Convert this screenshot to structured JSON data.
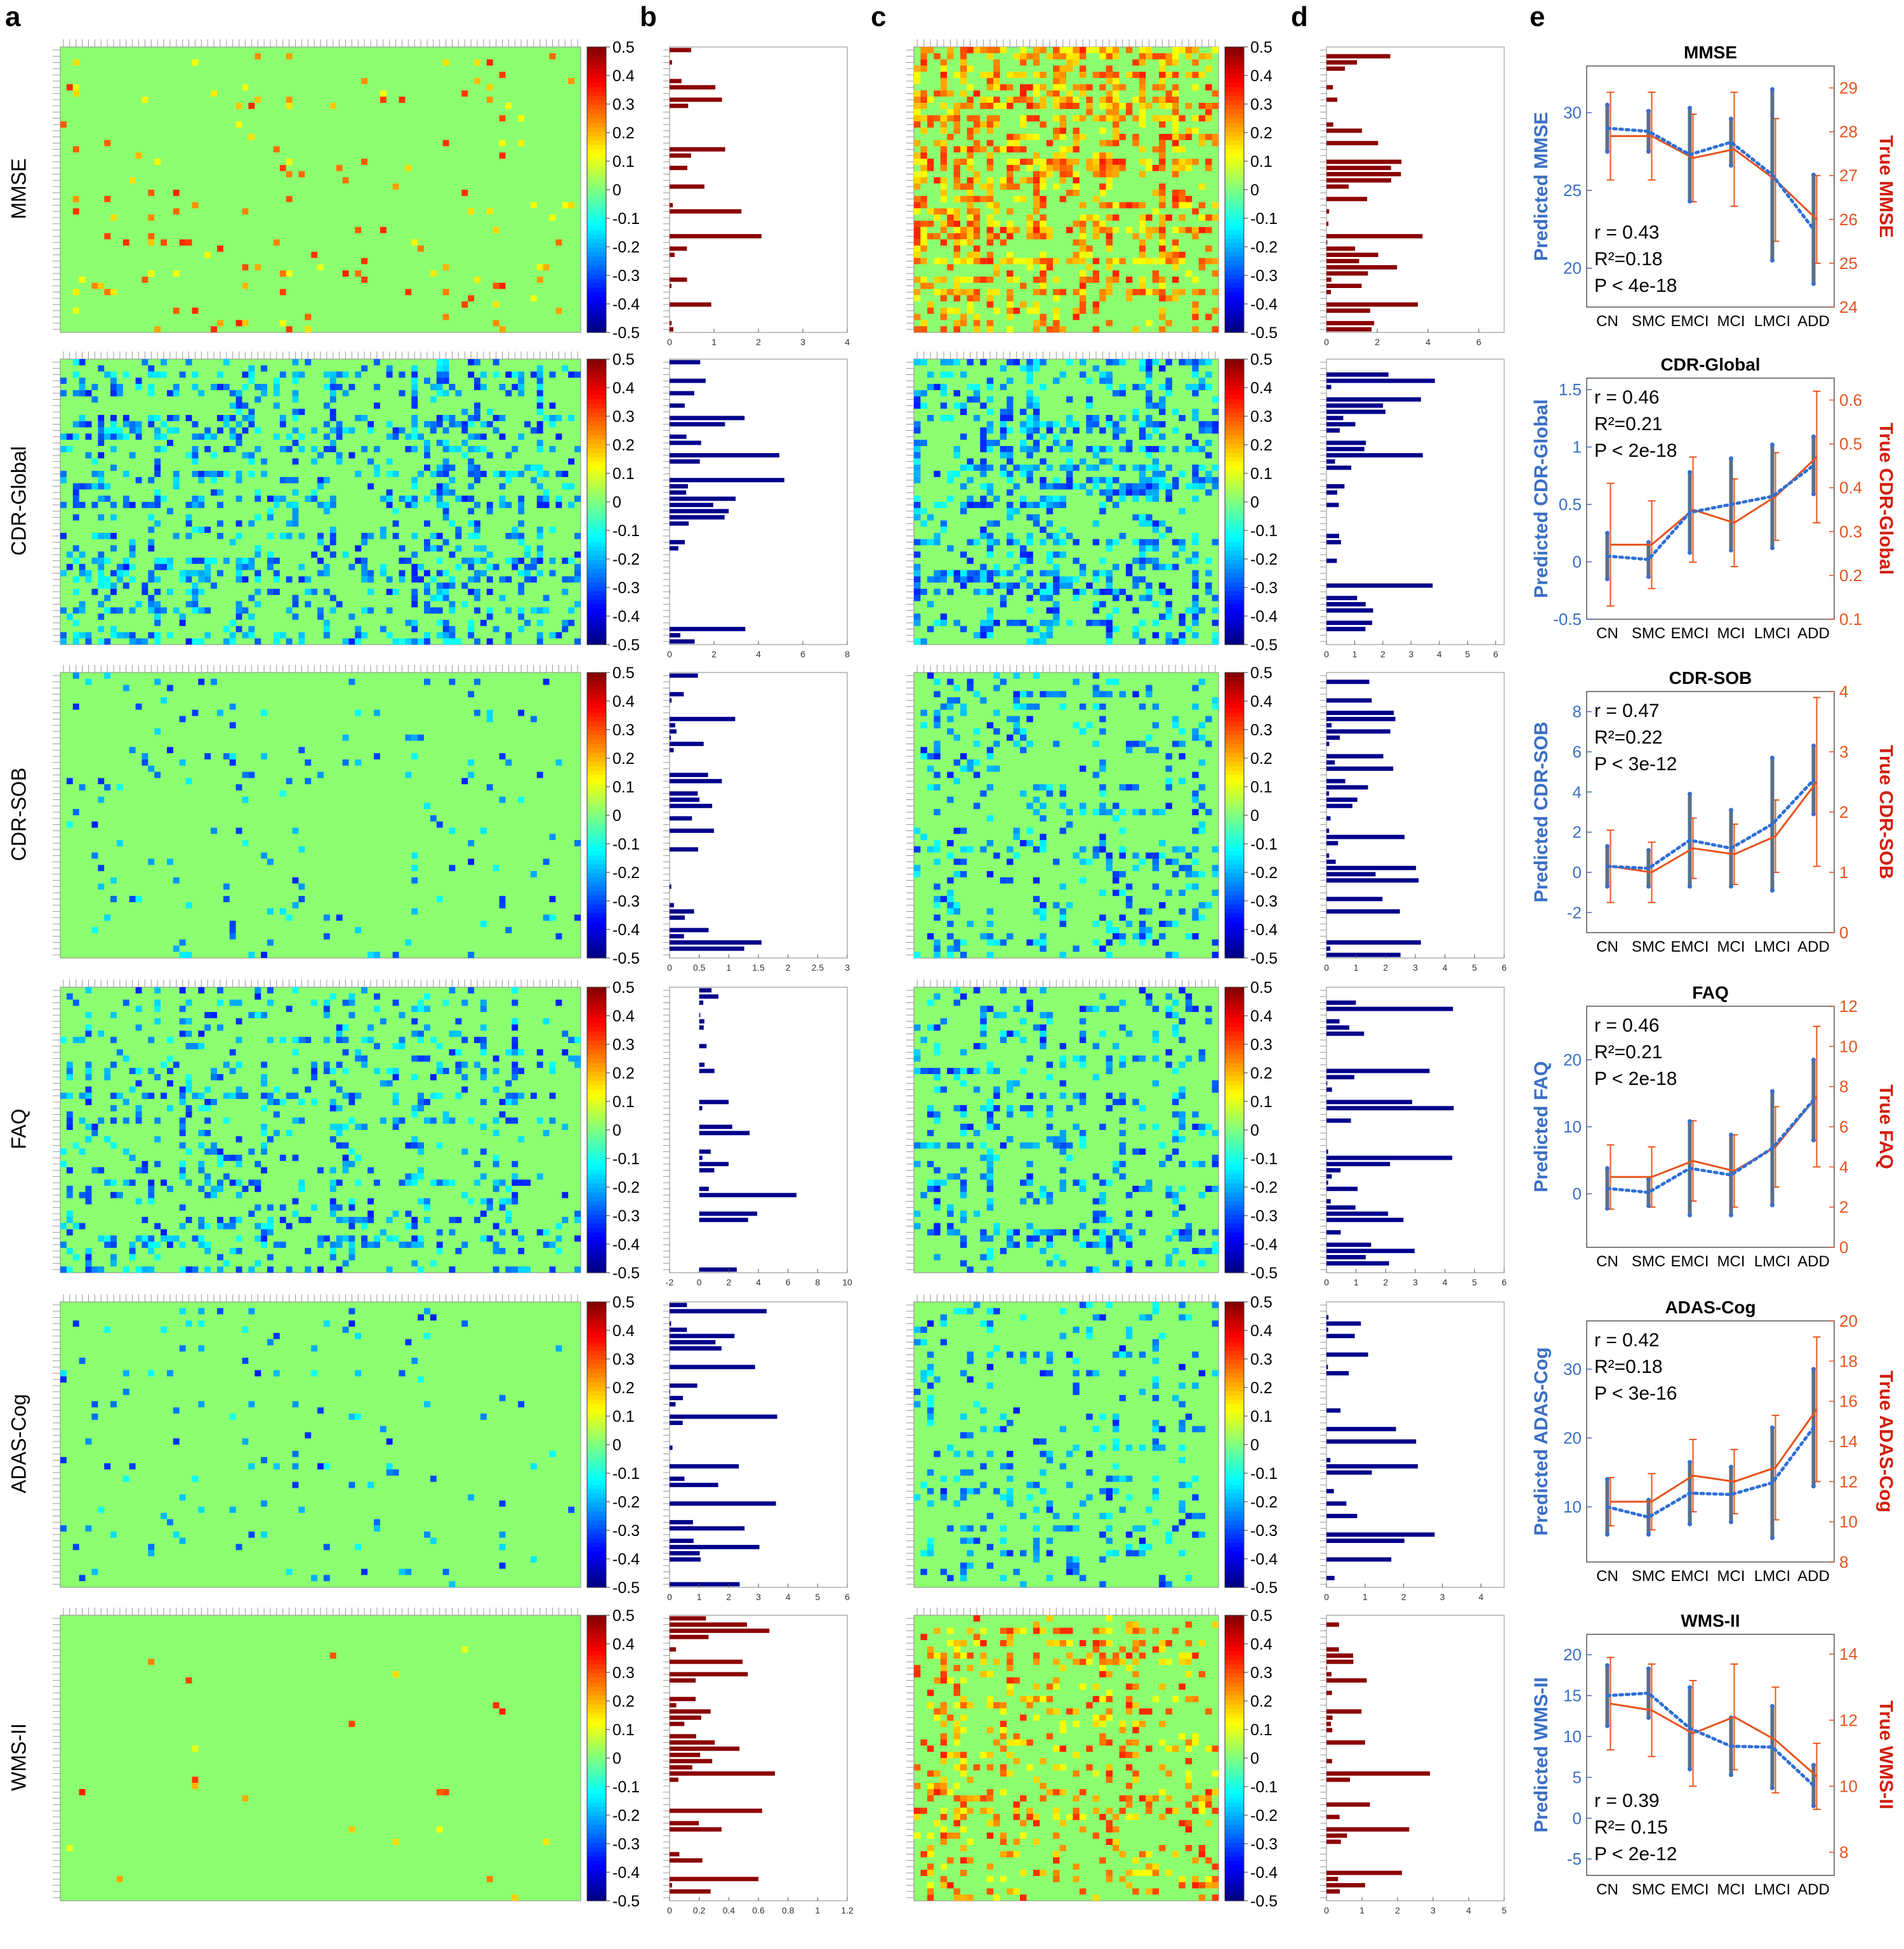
{
  "panel_letters": [
    "a",
    "b",
    "c",
    "d",
    "e"
  ],
  "row_labels": [
    "MMSE",
    "CDR-Global",
    "CDR-SOB",
    "FAQ",
    "ADAS-Cog",
    "WMS-II"
  ],
  "colorbar_ticks": [
    "0.5",
    "0.4",
    "0.3",
    "0.2",
    "0.1",
    "0",
    "-0.1",
    "-0.2",
    "-0.3",
    "-0.4",
    "-0.5"
  ],
  "colorbar_range": [
    -0.5,
    0.5
  ],
  "colors": {
    "positive_bar": "#8b0000",
    "negative_bar": "#00008b",
    "heatmap_background": "#8cff70",
    "predicted_series": "#3a6fc4",
    "true_series": "#e8541e",
    "predicted_errorbar": "#5a6f86"
  },
  "bar_axes": {
    "b": [
      {
        "ticks": [
          "0",
          "1",
          "2",
          "3",
          "4"
        ],
        "xlim": [
          0,
          4
        ]
      },
      {
        "ticks": [
          "0",
          "2",
          "4",
          "6",
          "8"
        ],
        "xlim": [
          0,
          8
        ]
      },
      {
        "ticks": [
          "0",
          "0.5",
          "1",
          "1.5",
          "2",
          "2.5",
          "3"
        ],
        "xlim": [
          0,
          3
        ]
      },
      {
        "ticks": [
          "-2",
          "0",
          "2",
          "4",
          "6",
          "8",
          "10"
        ],
        "xlim": [
          -2,
          10
        ]
      },
      {
        "ticks": [
          "0",
          "1",
          "2",
          "3",
          "4",
          "5",
          "6"
        ],
        "xlim": [
          0,
          6
        ]
      },
      {
        "ticks": [
          "0",
          "0.2",
          "0.4",
          "0.6",
          "0.8",
          "1",
          "1.2"
        ],
        "xlim": [
          0,
          1.2
        ]
      }
    ],
    "d": [
      {
        "ticks": [
          "0",
          "2",
          "4",
          "6"
        ],
        "xlim": [
          0,
          7
        ]
      },
      {
        "ticks": [
          "0",
          "1",
          "2",
          "3",
          "4",
          "5",
          "6"
        ],
        "xlim": [
          0,
          6.3
        ]
      },
      {
        "ticks": [
          "0",
          "1",
          "2",
          "3",
          "4",
          "5",
          "6"
        ],
        "xlim": [
          0,
          6
        ]
      },
      {
        "ticks": [
          "0",
          "1",
          "2",
          "3",
          "4",
          "5",
          "6"
        ],
        "xlim": [
          0,
          6
        ]
      },
      {
        "ticks": [
          "0",
          "1",
          "2",
          "3",
          "4"
        ],
        "xlim": [
          0,
          4.6
        ]
      },
      {
        "ticks": [
          "0",
          "1",
          "2",
          "3",
          "4",
          "5"
        ],
        "xlim": [
          0,
          5
        ]
      }
    ]
  },
  "chart_data": [
    {
      "type": "line",
      "title": "MMSE",
      "categories": [
        "CN",
        "SMC",
        "EMCI",
        "MCI",
        "LMCI",
        "ADD"
      ],
      "ylabel": "Predicted MMSE",
      "ylabel2": "True MMSE",
      "ylim": [
        17.5,
        33
      ],
      "yticks": [
        20,
        25,
        30
      ],
      "ylim2": [
        24,
        29.5
      ],
      "yticks2": [
        24,
        25,
        26,
        27,
        28,
        29
      ],
      "stats": {
        "r": "r = 0.43",
        "r2": "R²=0.18",
        "p": "P < 4e-18"
      },
      "stats_position": "bottom-left",
      "series": [
        {
          "name": "Predicted",
          "values": [
            29.0,
            28.8,
            27.3,
            28.1,
            26.0,
            22.5
          ],
          "err": [
            1.5,
            1.3,
            3.0,
            1.5,
            5.5,
            3.5
          ]
        },
        {
          "name": "True",
          "values": [
            27.9,
            27.9,
            27.4,
            27.6,
            26.9,
            26.0
          ],
          "err": [
            1.0,
            1.0,
            1.0,
            1.3,
            1.4,
            1.0
          ]
        }
      ]
    },
    {
      "type": "line",
      "title": "CDR-Global",
      "categories": [
        "CN",
        "SMC",
        "EMCI",
        "MCI",
        "LMCI",
        "ADD"
      ],
      "ylabel": "Predicted CDR-Global",
      "ylabel2": "True CDR-Global",
      "ylim": [
        -0.5,
        1.6
      ],
      "yticks": [
        -0.5,
        0,
        0.5,
        1,
        1.5
      ],
      "ylim2": [
        0.1,
        0.65
      ],
      "yticks2": [
        0.1,
        0.2,
        0.3,
        0.4,
        0.5,
        0.6
      ],
      "stats": {
        "r": "r = 0.46",
        "r2": "R²=0.21",
        "p": "P < 2e-18"
      },
      "stats_position": "top-left",
      "series": [
        {
          "name": "Predicted",
          "values": [
            0.05,
            0.02,
            0.43,
            0.5,
            0.57,
            0.84
          ],
          "err": [
            0.2,
            0.15,
            0.35,
            0.4,
            0.45,
            0.25
          ]
        },
        {
          "name": "True",
          "values": [
            0.27,
            0.27,
            0.35,
            0.32,
            0.38,
            0.47
          ],
          "err": [
            0.14,
            0.1,
            0.12,
            0.1,
            0.1,
            0.15
          ]
        }
      ]
    },
    {
      "type": "line",
      "title": "CDR-SOB",
      "categories": [
        "CN",
        "SMC",
        "EMCI",
        "MCI",
        "LMCI",
        "ADD"
      ],
      "ylabel": "Predicted CDR-SOB",
      "ylabel2": "True CDR-SOB",
      "ylim": [
        -3,
        9
      ],
      "yticks": [
        -2,
        0,
        2,
        4,
        6,
        8
      ],
      "ylim2": [
        0,
        4
      ],
      "yticks2": [
        0,
        1,
        2,
        3,
        4
      ],
      "stats": {
        "r": "r = 0.47",
        "r2": "R²=0.22",
        "p": "P < 3e-12"
      },
      "stats_position": "top-left",
      "series": [
        {
          "name": "Predicted",
          "values": [
            0.3,
            0.2,
            1.6,
            1.2,
            2.4,
            4.6
          ],
          "err": [
            1.0,
            0.9,
            2.3,
            1.9,
            3.3,
            1.7
          ]
        },
        {
          "name": "True",
          "values": [
            1.1,
            1.0,
            1.4,
            1.3,
            1.6,
            2.5
          ],
          "err": [
            0.6,
            0.5,
            0.5,
            0.5,
            0.6,
            1.4
          ]
        }
      ]
    },
    {
      "type": "line",
      "title": "FAQ",
      "categories": [
        "CN",
        "SMC",
        "EMCI",
        "MCI",
        "LMCI",
        "ADD"
      ],
      "ylabel": "Predicted FAQ",
      "ylabel2": "True FAQ",
      "ylim": [
        -8,
        28
      ],
      "yticks": [
        0,
        10,
        20
      ],
      "ylim2": [
        0,
        12
      ],
      "yticks2": [
        0,
        2,
        4,
        6,
        8,
        10,
        12
      ],
      "stats": {
        "r": "r = 0.46",
        "r2": "R²=0.21",
        "p": "P < 2e-18"
      },
      "stats_position": "top-left",
      "series": [
        {
          "name": "Predicted",
          "values": [
            0.8,
            0.2,
            3.8,
            2.8,
            6.8,
            14.0
          ],
          "err": [
            3.0,
            2.0,
            7.0,
            6.0,
            8.5,
            6.0
          ]
        },
        {
          "name": "True",
          "values": [
            3.5,
            3.5,
            4.3,
            3.8,
            5.0,
            7.5
          ],
          "err": [
            1.6,
            1.5,
            2.0,
            1.8,
            2.0,
            3.5
          ]
        }
      ]
    },
    {
      "type": "line",
      "title": "ADAS-Cog",
      "categories": [
        "CN",
        "SMC",
        "EMCI",
        "MCI",
        "LMCI",
        "ADD"
      ],
      "ylabel": "Predicted ADAS-Cog",
      "ylabel2": "True ADAS-Cog",
      "ylim": [
        2,
        37
      ],
      "yticks": [
        10,
        20,
        30
      ],
      "ylim2": [
        8,
        20
      ],
      "yticks2": [
        8,
        10,
        12,
        14,
        16,
        18,
        20
      ],
      "stats": {
        "r": "r = 0.42",
        "r2": "R²=0.18",
        "p": "P < 3e-16"
      },
      "stats_position": "top-left",
      "series": [
        {
          "name": "Predicted",
          "values": [
            10.0,
            8.5,
            12.0,
            11.8,
            13.5,
            21.5
          ],
          "err": [
            4.0,
            2.5,
            4.5,
            4.0,
            8.0,
            8.5
          ]
        },
        {
          "name": "True",
          "values": [
            11.0,
            11.0,
            12.3,
            12.0,
            12.7,
            15.6
          ],
          "err": [
            1.2,
            1.4,
            1.8,
            1.6,
            2.6,
            3.6
          ]
        }
      ]
    },
    {
      "type": "line",
      "title": "WMS-II",
      "categories": [
        "CN",
        "SMC",
        "EMCI",
        "MCI",
        "LMCI",
        "ADD"
      ],
      "ylabel": "Predicted WMS-II",
      "ylabel2": "True WMS-II",
      "ylim": [
        -7,
        22.5
      ],
      "yticks": [
        -5,
        0,
        5,
        10,
        15,
        20
      ],
      "ylim2": [
        7.3,
        14.6
      ],
      "yticks2": [
        8,
        10,
        12,
        14
      ],
      "stats": {
        "r": "r = 0.39",
        "r2": "R²= 0.15",
        "p": "P < 2e-12"
      },
      "stats_position": "bottom-left",
      "series": [
        {
          "name": "Predicted",
          "values": [
            15.0,
            15.3,
            11.0,
            8.8,
            8.7,
            4.0
          ],
          "err": [
            3.7,
            3.0,
            5.0,
            3.5,
            5.0,
            2.5
          ]
        },
        {
          "name": "True",
          "values": [
            12.5,
            12.3,
            11.6,
            12.1,
            11.4,
            10.3
          ],
          "err": [
            1.4,
            1.4,
            1.6,
            1.6,
            1.6,
            1.0
          ]
        }
      ]
    }
  ]
}
